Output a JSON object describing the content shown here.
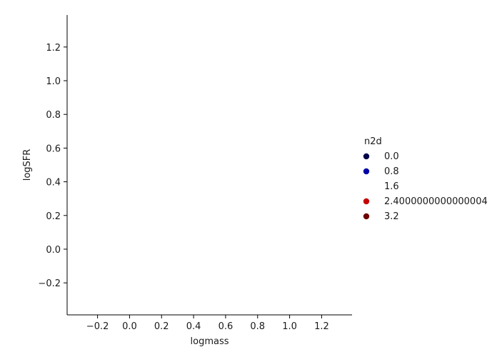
{
  "chart_data": {
    "type": "scatter",
    "title": "",
    "xlabel": "logmass",
    "ylabel": "logSFR",
    "xlim": [
      -0.39,
      1.39
    ],
    "ylim": [
      -0.39,
      1.39
    ],
    "xticks": [
      -0.2,
      0.0,
      0.2,
      0.4,
      0.6,
      0.8,
      1.0,
      1.2
    ],
    "yticks": [
      -0.2,
      0.0,
      0.2,
      0.4,
      0.6,
      0.8,
      1.0,
      1.2
    ],
    "xtick_labels": [
      "−0.2",
      "0.0",
      "0.2",
      "0.4",
      "0.6",
      "0.8",
      "1.0",
      "1.2"
    ],
    "ytick_labels": [
      "−0.2",
      "0.0",
      "0.2",
      "0.4",
      "0.6",
      "0.8",
      "1.0",
      "1.2"
    ],
    "grid": false,
    "points": [],
    "legend": {
      "title": "n2d",
      "placement": "right",
      "entries": [
        {
          "label": "0.0",
          "color": "#02024a"
        },
        {
          "label": "0.8",
          "color": "#0000a8"
        },
        {
          "label": "1.6",
          "color": "#ffffff"
        },
        {
          "label": "2.4000000000000004",
          "color": "#c60000"
        },
        {
          "label": "3.2",
          "color": "#6e0000"
        }
      ]
    }
  }
}
